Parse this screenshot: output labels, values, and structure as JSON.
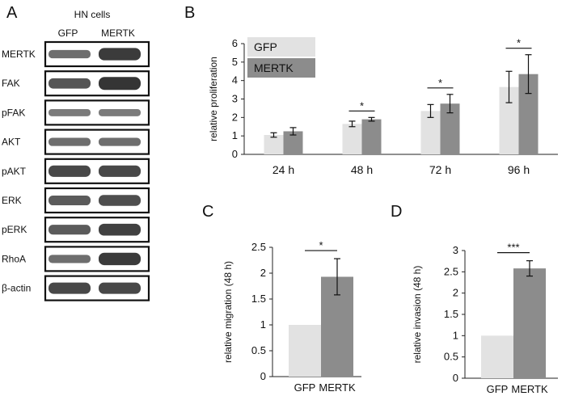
{
  "panels": {
    "a": "A",
    "b": "B",
    "c": "C",
    "d": "D"
  },
  "blot": {
    "header": "HN cells",
    "lanes": [
      "GFP",
      "MERTK"
    ],
    "rows": [
      {
        "label": "MERTK",
        "gfp_intensity": 0.55,
        "mertk_intensity": 0.95
      },
      {
        "label": "FAK",
        "gfp_intensity": 0.75,
        "mertk_intensity": 1.0
      },
      {
        "label": "pFAK",
        "gfp_intensity": 0.45,
        "mertk_intensity": 0.45
      },
      {
        "label": "AKT",
        "gfp_intensity": 0.55,
        "mertk_intensity": 0.55
      },
      {
        "label": "pAKT",
        "gfp_intensity": 0.85,
        "mertk_intensity": 0.85
      },
      {
        "label": "ERK",
        "gfp_intensity": 0.7,
        "mertk_intensity": 0.8
      },
      {
        "label": "pERK",
        "gfp_intensity": 0.7,
        "mertk_intensity": 0.9
      },
      {
        "label": "RhoA",
        "gfp_intensity": 0.55,
        "mertk_intensity": 0.95
      },
      {
        "label": "β-actin",
        "gfp_intensity": 0.85,
        "mertk_intensity": 0.85
      }
    ]
  },
  "colors": {
    "gfp": "#e2e2e2",
    "mertk": "#8c8c8c",
    "band": "#2a2a2a",
    "axis": "#222222"
  },
  "chart_data": [
    {
      "id": "B",
      "type": "bar",
      "title": "",
      "ylabel": "relative proliferation",
      "xlabel": "",
      "ylim": [
        0,
        6
      ],
      "yticks": [
        "0",
        "1",
        "2",
        "3",
        "4",
        "5",
        "6"
      ],
      "categories": [
        "24 h",
        "48 h",
        "72 h",
        "96 h"
      ],
      "series": [
        {
          "name": "GFP",
          "values": [
            1.05,
            1.65,
            2.35,
            3.65
          ],
          "errors": [
            0.12,
            0.15,
            0.35,
            0.85
          ]
        },
        {
          "name": "MERTK",
          "values": [
            1.25,
            1.9,
            2.75,
            4.35
          ],
          "errors": [
            0.2,
            0.1,
            0.5,
            1.05
          ]
        }
      ],
      "significance": [
        {
          "category": "48 h",
          "label": "*"
        },
        {
          "category": "72 h",
          "label": "*"
        },
        {
          "category": "96 h",
          "label": "*"
        }
      ],
      "legend": {
        "position": "top-left",
        "entries": [
          "GFP",
          "MERTK"
        ]
      }
    },
    {
      "id": "C",
      "type": "bar",
      "ylabel": "relative migration (48 h)",
      "ylim": [
        0,
        2.5
      ],
      "yticks": [
        "0",
        "0.5",
        "1",
        "1.5",
        "2",
        "2.5"
      ],
      "categories": [
        "GFP",
        "MERTK"
      ],
      "values": [
        1.0,
        1.93
      ],
      "errors": [
        0,
        0.35
      ],
      "significance": "*"
    },
    {
      "id": "D",
      "type": "bar",
      "ylabel": "relative invasion (48 h)",
      "ylim": [
        0,
        3
      ],
      "yticks": [
        "0",
        "0.5",
        "1",
        "1.5",
        "2",
        "2.5",
        "3"
      ],
      "categories": [
        "GFP",
        "MERTK"
      ],
      "values": [
        1.0,
        2.58
      ],
      "errors": [
        0,
        0.18
      ],
      "significance": "***"
    }
  ]
}
